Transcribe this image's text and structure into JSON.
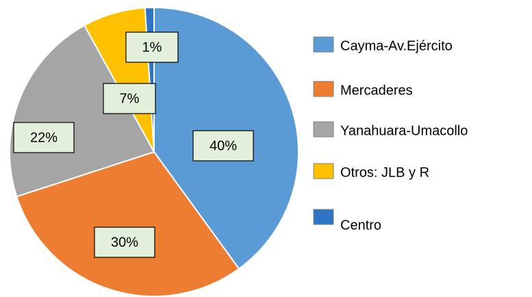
{
  "chart_data": {
    "type": "pie",
    "categories": [
      "Cayma-Av.Ejército",
      "Mercaderes",
      "Yanahuara-Umacollo",
      "Otros: JLB y R",
      "Centro"
    ],
    "values": [
      40,
      30,
      22,
      7,
      1
    ],
    "value_labels": [
      "40%",
      "30%",
      "22%",
      "7%",
      "1%"
    ],
    "colors": [
      "#5b9bd5",
      "#ed7d31",
      "#a5a5a5",
      "#ffc000",
      "#2e75c6"
    ],
    "legend": "right"
  }
}
